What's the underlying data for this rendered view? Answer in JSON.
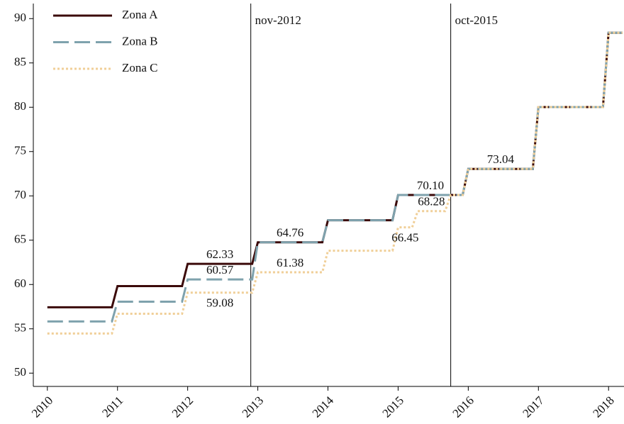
{
  "chart_data": {
    "type": "line",
    "series": [
      {
        "name": "Zona A",
        "color": "#3b0a0a",
        "dash": "solid",
        "x": [
          2010,
          2010.92,
          2011.0,
          2011.92,
          2012.0,
          2012.92,
          2013.0,
          2013.92,
          2014.0,
          2014.92,
          2015.0,
          2015.92,
          2016.0,
          2016.92,
          2017.0,
          2017.92,
          2018.0,
          2018.2
        ],
        "values": [
          57.43,
          57.43,
          59.82,
          59.82,
          62.33,
          62.33,
          64.76,
          64.76,
          67.25,
          67.25,
          70.1,
          70.1,
          73.04,
          73.04,
          80.02,
          80.02,
          88.4,
          88.4
        ],
        "value_labels": [
          null,
          null,
          null,
          null,
          "62.33",
          null,
          "64.76",
          null,
          null,
          null,
          "70.10",
          null,
          "73.04",
          null,
          null,
          null,
          null,
          null
        ]
      },
      {
        "name": "Zona B",
        "color": "#7fa2ad",
        "dash": "dashed",
        "x": [
          2010,
          2010.92,
          2011.0,
          2011.92,
          2012.0,
          2012.92,
          2013.0,
          2013.92,
          2014.0,
          2014.92,
          2015.0,
          2015.92,
          2016.0,
          2016.92,
          2017.0,
          2017.92,
          2018.0,
          2018.2
        ],
        "values": [
          55.83,
          55.83,
          58.06,
          58.06,
          60.57,
          60.57,
          64.76,
          64.76,
          67.25,
          67.25,
          70.1,
          70.1,
          73.04,
          73.04,
          80.02,
          80.02,
          88.4,
          88.4
        ],
        "value_labels": [
          null,
          null,
          null,
          null,
          "60.57",
          null,
          null,
          null,
          null,
          null,
          null,
          null,
          null,
          null,
          null,
          null,
          null,
          null
        ]
      },
      {
        "name": "Zona C",
        "color": "#f0cf98",
        "dash": "dotted",
        "x": [
          2010,
          2010.92,
          2011.0,
          2011.92,
          2012.0,
          2012.92,
          2013.0,
          2013.92,
          2014.0,
          2014.92,
          2015.0,
          2015.2,
          2015.28,
          2015.67,
          2015.75,
          2015.92,
          2016.0,
          2016.92,
          2017.0,
          2017.92,
          2018.0,
          2018.2
        ],
        "values": [
          54.47,
          54.47,
          56.7,
          56.7,
          59.08,
          59.08,
          61.38,
          61.38,
          63.81,
          63.81,
          66.45,
          66.45,
          68.28,
          68.28,
          70.1,
          70.1,
          73.04,
          73.04,
          80.02,
          80.02,
          88.4,
          88.4
        ],
        "value_labels": [
          null,
          null,
          null,
          null,
          "59.08",
          null,
          "61.38",
          null,
          null,
          null,
          "66.45",
          null,
          "68.28",
          null,
          null,
          null,
          null,
          null,
          null,
          null,
          null,
          null
        ]
      }
    ],
    "vlines": [
      {
        "x": 2012.9,
        "label": "nov-2012"
      },
      {
        "x": 2015.75,
        "label": "oct-2015"
      }
    ],
    "xlim": [
      2009.8,
      2018.22
    ],
    "xticks": [
      2010,
      2011,
      2012,
      2013,
      2014,
      2015,
      2016,
      2017,
      2018
    ],
    "ylim": [
      48.5,
      91.7
    ],
    "yticks": [
      50,
      55,
      60,
      65,
      70,
      75,
      80,
      85,
      90
    ],
    "grid": false,
    "legend": "top-left"
  }
}
